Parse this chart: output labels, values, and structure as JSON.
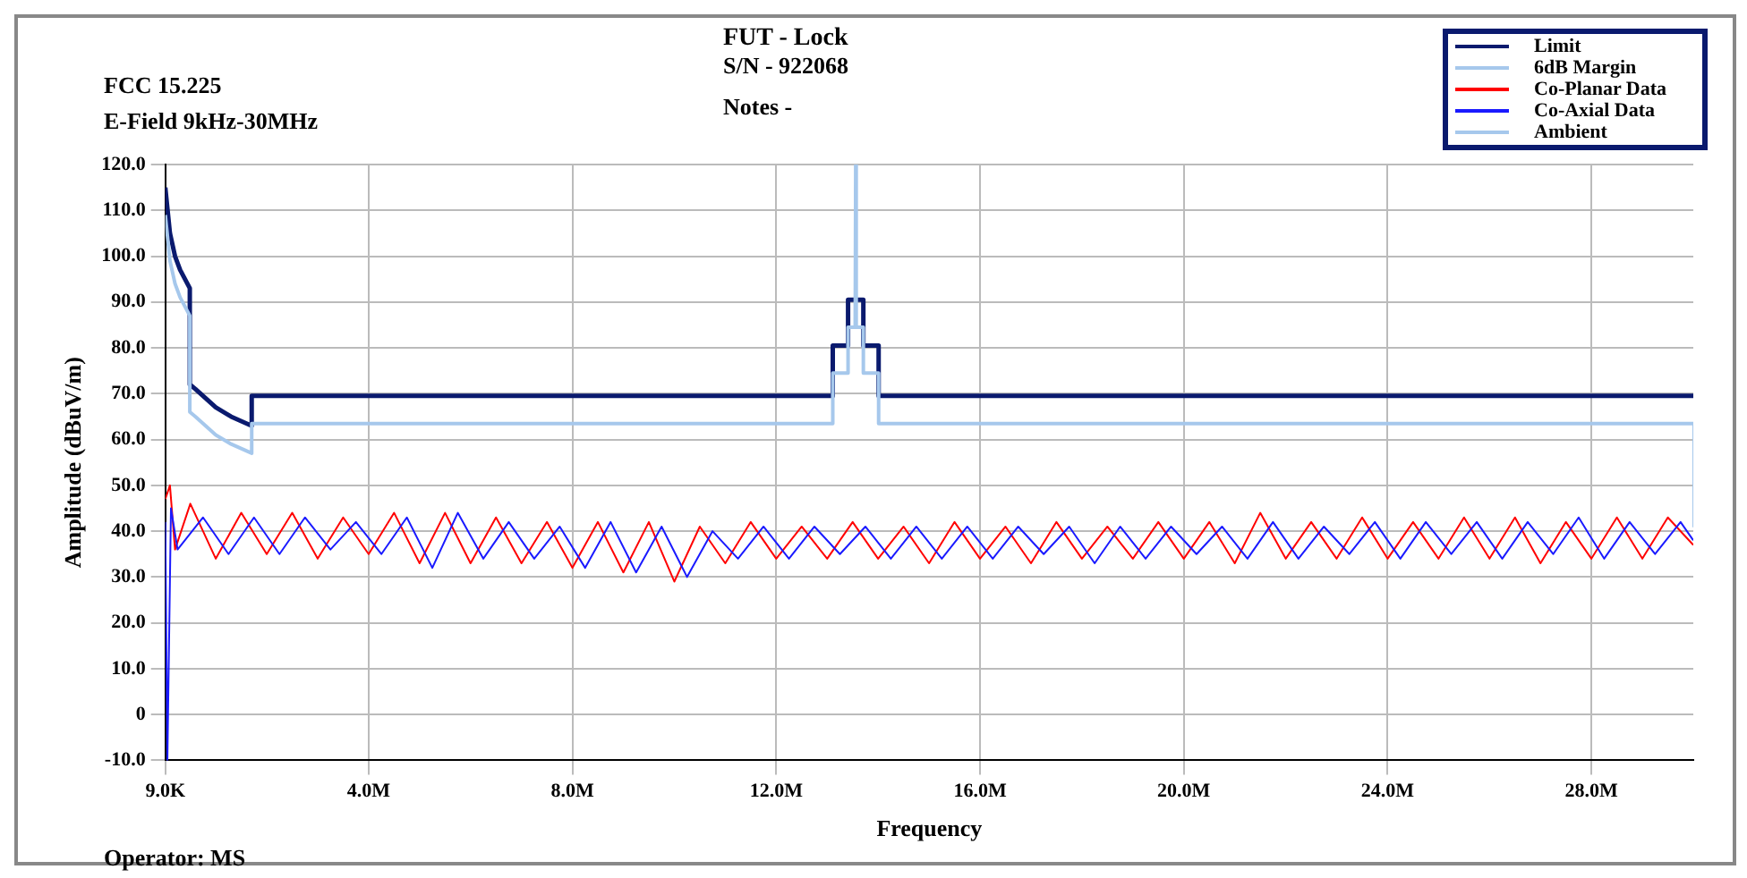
{
  "chart_data": {
    "type": "line",
    "title": "FUT - Lock",
    "subtitle": "S/N - 922068",
    "xlabel": "Frequency",
    "ylabel": "Amplitude (dBuV/m)",
    "annotations": [
      "FCC 15.225",
      "E-Field 9kHz-30MHz",
      "Notes -",
      "Operator: MS"
    ],
    "xlim": [
      9000,
      30000000
    ],
    "ylim": [
      -10,
      120
    ],
    "xticks": [
      {
        "value": 9000,
        "label": "9.0K"
      },
      {
        "value": 4000000,
        "label": "4.0M"
      },
      {
        "value": 8000000,
        "label": "8.0M"
      },
      {
        "value": 12000000,
        "label": "12.0M"
      },
      {
        "value": 16000000,
        "label": "16.0M"
      },
      {
        "value": 20000000,
        "label": "20.0M"
      },
      {
        "value": 24000000,
        "label": "24.0M"
      },
      {
        "value": 28000000,
        "label": "28.0M"
      }
    ],
    "yticks": [
      {
        "value": -10,
        "label": "-10.0"
      },
      {
        "value": 0,
        "label": "0"
      },
      {
        "value": 10,
        "label": "10.0"
      },
      {
        "value": 20,
        "label": "20.0"
      },
      {
        "value": 30,
        "label": "30.0"
      },
      {
        "value": 40,
        "label": "40.0"
      },
      {
        "value": 50,
        "label": "50.0"
      },
      {
        "value": 60,
        "label": "60.0"
      },
      {
        "value": 70,
        "label": "70.0"
      },
      {
        "value": 80,
        "label": "80.0"
      },
      {
        "value": 90,
        "label": "90.0"
      },
      {
        "value": 100,
        "label": "100.0"
      },
      {
        "value": 110,
        "label": "110.0"
      },
      {
        "value": 120,
        "label": "120.0"
      }
    ],
    "grid": true,
    "legend": "top right",
    "marker": "none",
    "series": [
      {
        "name": "Limit",
        "color": "#0a1a6e",
        "x": [
          9000,
          100000,
          200000,
          300000,
          490000,
          490000,
          600000,
          800000,
          1000000,
          1300000,
          1705000,
          1705000,
          13110000,
          13110000,
          13410000,
          13410000,
          13710000,
          13710000,
          14010000,
          14010000,
          30000000
        ],
        "values": [
          115,
          105,
          100,
          97,
          93,
          72,
          71,
          69,
          67,
          65,
          63,
          69.5,
          69.5,
          80.5,
          80.5,
          90.5,
          90.5,
          80.5,
          80.5,
          69.5,
          69.5
        ]
      },
      {
        "name": "6dB Margin",
        "color": "#a6c8ec",
        "x": [
          9000,
          100000,
          200000,
          300000,
          490000,
          490000,
          600000,
          800000,
          1000000,
          1300000,
          1705000,
          1705000,
          13110000,
          13110000,
          13410000,
          13410000,
          13550000,
          13560000,
          13570000,
          13710000,
          13710000,
          14010000,
          14010000,
          30000000
        ],
        "values": [
          109,
          99,
          94,
          91,
          87,
          66,
          65,
          63,
          61,
          59,
          57,
          63.5,
          63.5,
          74.5,
          74.5,
          84.5,
          84.5,
          120,
          84.5,
          84.5,
          74.5,
          74.5,
          63.5,
          63.5
        ]
      },
      {
        "name": "Co-Planar Data",
        "color": "#ff0000",
        "x": [
          9000,
          100000,
          200000,
          500000,
          1000000,
          1500000,
          2000000,
          2500000,
          3000000,
          3500000,
          4000000,
          4500000,
          5000000,
          5500000,
          6000000,
          6500000,
          7000000,
          7500000,
          8000000,
          8500000,
          9000000,
          9500000,
          10000000,
          10500000,
          11000000,
          11500000,
          12000000,
          12500000,
          13000000,
          13500000,
          14000000,
          14500000,
          15000000,
          15500000,
          16000000,
          16500000,
          17000000,
          17500000,
          18000000,
          18500000,
          19000000,
          19500000,
          20000000,
          20500000,
          21000000,
          21500000,
          22000000,
          22500000,
          23000000,
          23500000,
          24000000,
          24500000,
          25000000,
          25500000,
          26000000,
          26500000,
          27000000,
          27500000,
          28000000,
          28500000,
          29000000,
          29500000,
          30000000
        ],
        "values": [
          47,
          50,
          36,
          46,
          34,
          44,
          35,
          44,
          34,
          43,
          35,
          44,
          33,
          44,
          33,
          43,
          33,
          42,
          32,
          42,
          31,
          42,
          29,
          41,
          33,
          42,
          34,
          41,
          34,
          42,
          34,
          41,
          33,
          42,
          34,
          41,
          33,
          42,
          34,
          41,
          34,
          42,
          34,
          42,
          33,
          44,
          34,
          42,
          34,
          43,
          34,
          42,
          34,
          43,
          34,
          43,
          33,
          42,
          34,
          43,
          34,
          43,
          37
        ]
      },
      {
        "name": "Co-Axial Data",
        "color": "#1a1aff",
        "x": [
          9000,
          50000,
          120000,
          250000,
          750000,
          1250000,
          1750000,
          2250000,
          2750000,
          3250000,
          3750000,
          4250000,
          4750000,
          5250000,
          5750000,
          6250000,
          6750000,
          7250000,
          7750000,
          8250000,
          8750000,
          9250000,
          9750000,
          10250000,
          10750000,
          11250000,
          11750000,
          12250000,
          12750000,
          13250000,
          13750000,
          14250000,
          14750000,
          15250000,
          15750000,
          16250000,
          16750000,
          17250000,
          17750000,
          18250000,
          18750000,
          19250000,
          19750000,
          20250000,
          20750000,
          21250000,
          21750000,
          22250000,
          22750000,
          23250000,
          23750000,
          24250000,
          24750000,
          25250000,
          25750000,
          26250000,
          26750000,
          27250000,
          27750000,
          28250000,
          28750000,
          29250000,
          29750000,
          30000000
        ],
        "values": [
          42,
          -10,
          45,
          36,
          43,
          35,
          43,
          35,
          43,
          36,
          42,
          35,
          43,
          32,
          44,
          34,
          42,
          34,
          41,
          32,
          42,
          31,
          41,
          30,
          40,
          34,
          41,
          34,
          41,
          35,
          41,
          34,
          41,
          34,
          41,
          34,
          41,
          35,
          41,
          33,
          41,
          34,
          41,
          35,
          41,
          34,
          42,
          34,
          41,
          35,
          42,
          34,
          42,
          35,
          42,
          34,
          42,
          35,
          43,
          34,
          42,
          35,
          42,
          38
        ]
      },
      {
        "name": "Ambient",
        "color": "#a6c8ec",
        "x": [
          30000000,
          30000000
        ],
        "values": [
          63.5,
          41
        ]
      }
    ]
  }
}
